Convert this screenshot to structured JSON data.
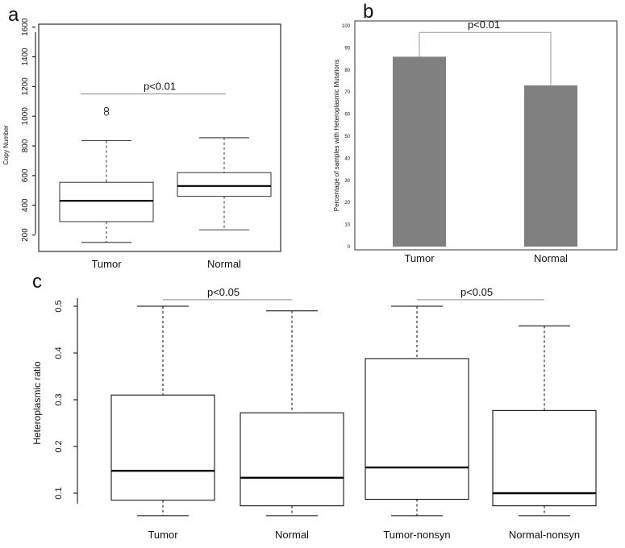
{
  "chart_data": [
    {
      "panel": "a",
      "type": "boxplot",
      "ylabel": "Copy Number",
      "ylim": [
        100,
        1620
      ],
      "yticks": [
        200,
        400,
        600,
        800,
        1000,
        1200,
        1400,
        1600
      ],
      "categories": [
        "Tumor",
        "Normal"
      ],
      "boxes": [
        {
          "name": "Tumor",
          "min": 150,
          "q1": 290,
          "median": 430,
          "q3": 555,
          "max": 835,
          "outliers": [
            1020,
            1045
          ]
        },
        {
          "name": "Normal",
          "min": 235,
          "q1": 460,
          "median": 530,
          "q3": 620,
          "max": 855,
          "outliers": []
        }
      ],
      "significance": {
        "label": "p<0.01",
        "between": [
          "Tumor",
          "Normal"
        ],
        "y": 1150
      }
    },
    {
      "panel": "b",
      "type": "bar",
      "ylabel": "Percentage of samples with Heteroplasmic Mutations",
      "ylim": [
        0,
        100
      ],
      "yticks": [
        0,
        10,
        20,
        30,
        40,
        50,
        60,
        70,
        80,
        90,
        100
      ],
      "categories": [
        "Tumor",
        "Normal"
      ],
      "values": [
        86,
        73
      ],
      "color": "#808080",
      "significance": {
        "label": "p<0.01",
        "between": [
          "Tumor",
          "Normal"
        ],
        "y": 97
      }
    },
    {
      "panel": "c",
      "type": "boxplot",
      "ylabel": "Heteroplasmic ratio",
      "ylim": [
        0.05,
        0.5
      ],
      "yticks": [
        0.1,
        0.2,
        0.3,
        0.4,
        0.5
      ],
      "categories": [
        "Tumor",
        "Normal",
        "Tumor-nonsyn",
        "Normal-nonsyn"
      ],
      "boxes": [
        {
          "name": "Tumor",
          "min": 0.052,
          "q1": 0.085,
          "median": 0.148,
          "q3": 0.31,
          "max": 0.5
        },
        {
          "name": "Normal",
          "min": 0.052,
          "q1": 0.073,
          "median": 0.133,
          "q3": 0.272,
          "max": 0.49
        },
        {
          "name": "Tumor-nonsyn",
          "min": 0.052,
          "q1": 0.087,
          "median": 0.155,
          "q3": 0.388,
          "max": 0.5
        },
        {
          "name": "Normal-nonsyn",
          "min": 0.052,
          "q1": 0.073,
          "median": 0.1,
          "q3": 0.277,
          "max": 0.458
        }
      ],
      "significance": [
        {
          "label": "p<0.05",
          "between": [
            "Tumor",
            "Normal"
          ],
          "y": 0.514
        },
        {
          "label": "p<0.05",
          "between": [
            "Tumor-nonsyn",
            "Normal-nonsyn"
          ],
          "y": 0.514
        }
      ]
    }
  ]
}
